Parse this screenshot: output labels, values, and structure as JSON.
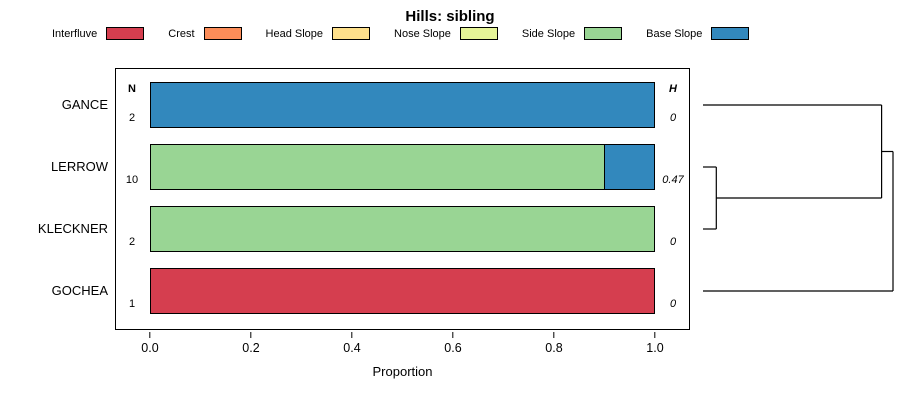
{
  "chart_data": {
    "type": "bar",
    "orientation": "horizontal",
    "stacked": true,
    "title": "Hills: sibling",
    "xlabel": "Proportion",
    "xlim": [
      0,
      1
    ],
    "xticks": [
      0,
      0.2,
      0.4,
      0.6,
      0.8,
      1
    ],
    "xtick_labels": [
      "0.0",
      "0.2",
      "0.4",
      "0.6",
      "0.8",
      "1.0"
    ],
    "n_header": "N",
    "h_header": "H",
    "legend_position": "top",
    "categories": [
      "Interfluve",
      "Crest",
      "Head Slope",
      "Nose Slope",
      "Side Slope",
      "Base Slope"
    ],
    "category_colors": {
      "Interfluve": "#D53E4F",
      "Crest": "#FC8D59",
      "Head Slope": "#FEE08B",
      "Nose Slope": "#E6F598",
      "Side Slope": "#99D594",
      "Base Slope": "#3288BD"
    },
    "rows": [
      {
        "name": "GANCE",
        "n": "2",
        "h": "0",
        "segments": [
          {
            "category": "Base Slope",
            "value": 1.0
          }
        ]
      },
      {
        "name": "LERROW",
        "n": "10",
        "h": "0.47",
        "segments": [
          {
            "category": "Side Slope",
            "value": 0.9
          },
          {
            "category": "Base Slope",
            "value": 0.1
          }
        ]
      },
      {
        "name": "KLECKNER",
        "n": "2",
        "h": "0",
        "segments": [
          {
            "category": "Side Slope",
            "value": 1.0
          }
        ]
      },
      {
        "name": "GOCHEA",
        "n": "1",
        "h": "0",
        "segments": [
          {
            "category": "Interfluve",
            "value": 1.0
          }
        ]
      }
    ],
    "dendrogram": {
      "leaves": [
        "GANCE",
        "LERROW",
        "KLECKNER",
        "GOCHEA"
      ],
      "merges": [
        {
          "a": 1,
          "b": 2,
          "height": 0.07
        },
        {
          "a": 0,
          "b": 4,
          "height": 0.94
        },
        {
          "a": 5,
          "b": 3,
          "height": 1.0
        }
      ]
    }
  }
}
